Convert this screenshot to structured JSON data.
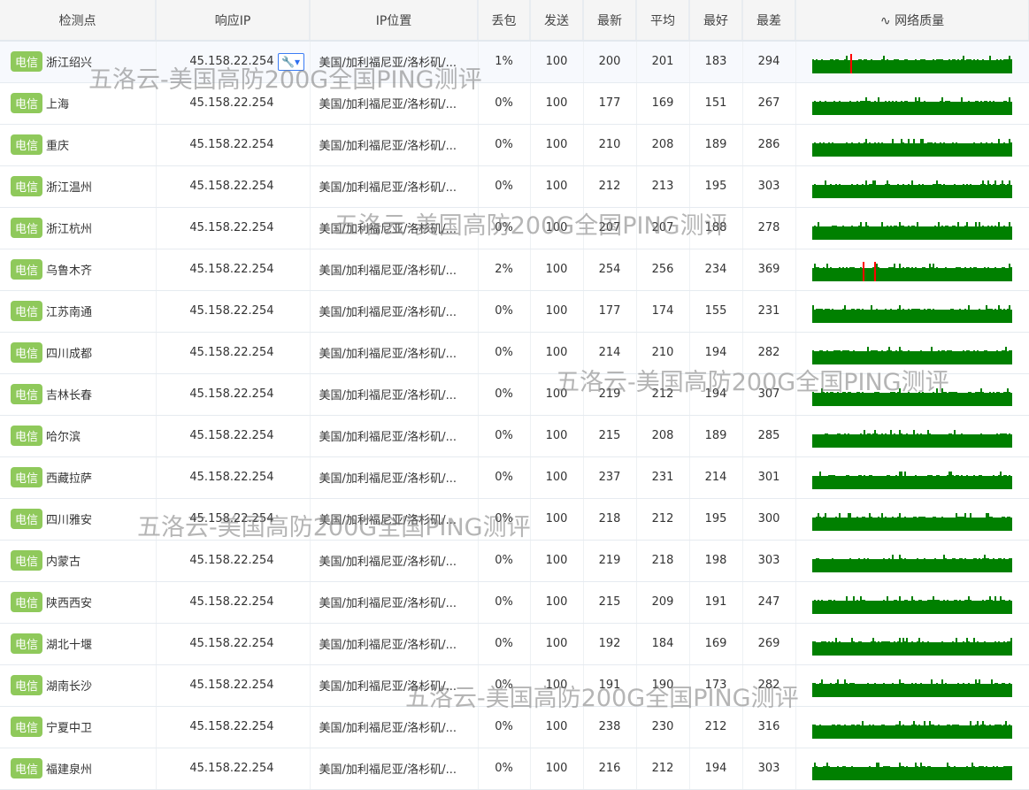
{
  "columns": [
    "检测点",
    "响应IP",
    "IP位置",
    "丢包",
    "发送",
    "最新",
    "平均",
    "最好",
    "最差",
    "网络质量"
  ],
  "quality_icon": "pulse-icon",
  "isp_label": "电信",
  "colors": {
    "badge": "#8fc95b",
    "bar": "#008000",
    "loss": "#ff0000",
    "header_bg": "#f5f5f5"
  },
  "watermark": "五洛云-美国高防200G全国PING测评",
  "rows": [
    {
      "node": "浙江绍兴",
      "ip": "45.158.22.254",
      "loc": "美国/加利福尼亚/洛杉矶/...",
      "loss": "1%",
      "sent": "100",
      "last": "200",
      "avg": "201",
      "best": "183",
      "worst": "294",
      "loss_marks": [
        0.19
      ]
    },
    {
      "node": "上海",
      "ip": "45.158.22.254",
      "loc": "美国/加利福尼亚/洛杉矶/...",
      "loss": "0%",
      "sent": "100",
      "last": "177",
      "avg": "169",
      "best": "151",
      "worst": "267",
      "loss_marks": []
    },
    {
      "node": "重庆",
      "ip": "45.158.22.254",
      "loc": "美国/加利福尼亚/洛杉矶/...",
      "loss": "0%",
      "sent": "100",
      "last": "210",
      "avg": "208",
      "best": "189",
      "worst": "286",
      "loss_marks": []
    },
    {
      "node": "浙江温州",
      "ip": "45.158.22.254",
      "loc": "美国/加利福尼亚/洛杉矶/...",
      "loss": "0%",
      "sent": "100",
      "last": "212",
      "avg": "213",
      "best": "195",
      "worst": "303",
      "loss_marks": []
    },
    {
      "node": "浙江杭州",
      "ip": "45.158.22.254",
      "loc": "美国/加利福尼亚/洛杉矶/...",
      "loss": "0%",
      "sent": "100",
      "last": "207",
      "avg": "207",
      "best": "188",
      "worst": "278",
      "loss_marks": []
    },
    {
      "node": "乌鲁木齐",
      "ip": "45.158.22.254",
      "loc": "美国/加利福尼亚/洛杉矶/...",
      "loss": "2%",
      "sent": "100",
      "last": "254",
      "avg": "256",
      "best": "234",
      "worst": "369",
      "loss_marks": [
        0.25,
        0.31
      ]
    },
    {
      "node": "江苏南通",
      "ip": "45.158.22.254",
      "loc": "美国/加利福尼亚/洛杉矶/...",
      "loss": "0%",
      "sent": "100",
      "last": "177",
      "avg": "174",
      "best": "155",
      "worst": "231",
      "loss_marks": []
    },
    {
      "node": "四川成都",
      "ip": "45.158.22.254",
      "loc": "美国/加利福尼亚/洛杉矶/...",
      "loss": "0%",
      "sent": "100",
      "last": "214",
      "avg": "210",
      "best": "194",
      "worst": "282",
      "loss_marks": []
    },
    {
      "node": "吉林长春",
      "ip": "45.158.22.254",
      "loc": "美国/加利福尼亚/洛杉矶/...",
      "loss": "0%",
      "sent": "100",
      "last": "219",
      "avg": "212",
      "best": "194",
      "worst": "307",
      "loss_marks": []
    },
    {
      "node": "哈尔滨",
      "ip": "45.158.22.254",
      "loc": "美国/加利福尼亚/洛杉矶/...",
      "loss": "0%",
      "sent": "100",
      "last": "215",
      "avg": "208",
      "best": "189",
      "worst": "285",
      "loss_marks": []
    },
    {
      "node": "西藏拉萨",
      "ip": "45.158.22.254",
      "loc": "美国/加利福尼亚/洛杉矶/...",
      "loss": "0%",
      "sent": "100",
      "last": "237",
      "avg": "231",
      "best": "214",
      "worst": "301",
      "loss_marks": []
    },
    {
      "node": "四川雅安",
      "ip": "45.158.22.254",
      "loc": "美国/加利福尼亚/洛杉矶/...",
      "loss": "0%",
      "sent": "100",
      "last": "218",
      "avg": "212",
      "best": "195",
      "worst": "300",
      "loss_marks": []
    },
    {
      "node": "内蒙古",
      "ip": "45.158.22.254",
      "loc": "美国/加利福尼亚/洛杉矶/...",
      "loss": "0%",
      "sent": "100",
      "last": "219",
      "avg": "218",
      "best": "198",
      "worst": "303",
      "loss_marks": []
    },
    {
      "node": "陕西西安",
      "ip": "45.158.22.254",
      "loc": "美国/加利福尼亚/洛杉矶/...",
      "loss": "0%",
      "sent": "100",
      "last": "215",
      "avg": "209",
      "best": "191",
      "worst": "247",
      "loss_marks": []
    },
    {
      "node": "湖北十堰",
      "ip": "45.158.22.254",
      "loc": "美国/加利福尼亚/洛杉矶/...",
      "loss": "0%",
      "sent": "100",
      "last": "192",
      "avg": "184",
      "best": "169",
      "worst": "269",
      "loss_marks": []
    },
    {
      "node": "湖南长沙",
      "ip": "45.158.22.254",
      "loc": "美国/加利福尼亚/洛杉矶/...",
      "loss": "0%",
      "sent": "100",
      "last": "191",
      "avg": "190",
      "best": "173",
      "worst": "282",
      "loss_marks": []
    },
    {
      "node": "宁夏中卫",
      "ip": "45.158.22.254",
      "loc": "美国/加利福尼亚/洛杉矶/...",
      "loss": "0%",
      "sent": "100",
      "last": "238",
      "avg": "230",
      "best": "212",
      "worst": "316",
      "loss_marks": []
    },
    {
      "node": "福建泉州",
      "ip": "45.158.22.254",
      "loc": "美国/加利福尼亚/洛杉矶/...",
      "loss": "0%",
      "sent": "100",
      "last": "216",
      "avg": "212",
      "best": "194",
      "worst": "303",
      "loss_marks": []
    }
  ]
}
